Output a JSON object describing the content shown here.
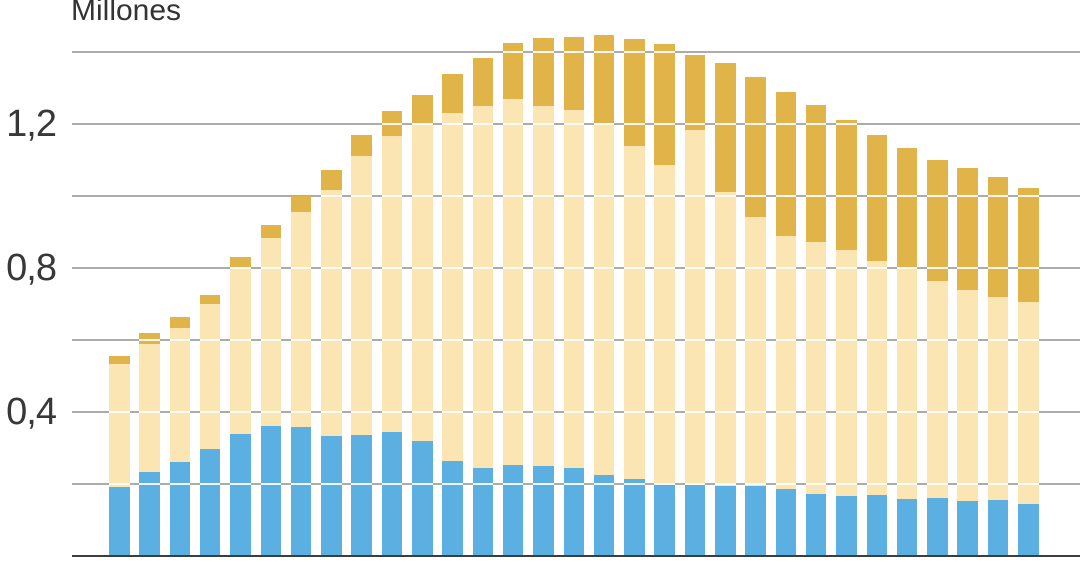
{
  "title": "Millones",
  "colors": {
    "blue_segment": "#5BAFE1",
    "cream_segment": "#FBE6B3",
    "gold_segment": "#E1B44A",
    "gridline": "#ABABAB",
    "baseline": "#3D3D3D",
    "bar_gridline_overlay": "#FFFFFF",
    "text": "#333333",
    "background": "#FFFFFF"
  },
  "chart_data": {
    "type": "bar",
    "stacked": true,
    "title": "Millones",
    "unit_label": "Millones",
    "xlabel": "",
    "ylabel": "Millones",
    "x_tick_labels_visible": false,
    "bar_count": 31,
    "ylim": [
      0,
      1.45
    ],
    "grid": true,
    "gridline_values": [
      0.2,
      0.4,
      0.6,
      0.8,
      1.0,
      1.2,
      1.4
    ],
    "y_axis_ticks": [
      {
        "value": 1.2,
        "label": "1,2"
      },
      {
        "value": 0.8,
        "label": "0,8"
      },
      {
        "value": 0.4,
        "label": "0,4"
      }
    ],
    "legend_visible": false,
    "series": [
      {
        "name": "blue-bottom-segment",
        "color_key": "blue_segment",
        "values": [
          0.192,
          0.233,
          0.261,
          0.297,
          0.339,
          0.361,
          0.358,
          0.333,
          0.336,
          0.344,
          0.319,
          0.265,
          0.244,
          0.254,
          0.251,
          0.244,
          0.225,
          0.213,
          0.2,
          0.197,
          0.193,
          0.193,
          0.186,
          0.172,
          0.168,
          0.169,
          0.158,
          0.16,
          0.153,
          0.156,
          0.144
        ]
      },
      {
        "name": "cream-middle-segment",
        "color_key": "cream_segment",
        "values": [
          0.341,
          0.357,
          0.371,
          0.403,
          0.461,
          0.522,
          0.597,
          0.684,
          0.774,
          0.823,
          0.881,
          0.965,
          1.006,
          1.016,
          0.999,
          0.994,
          0.977,
          0.927,
          0.885,
          0.986,
          0.817,
          0.749,
          0.704,
          0.7,
          0.682,
          0.651,
          0.641,
          0.603,
          0.586,
          0.562,
          0.562
        ]
      },
      {
        "name": "gold-top-segment",
        "color_key": "gold_segment",
        "values": [
          0.022,
          0.029,
          0.031,
          0.025,
          0.03,
          0.037,
          0.045,
          0.055,
          0.06,
          0.069,
          0.08,
          0.11,
          0.134,
          0.154,
          0.19,
          0.203,
          0.246,
          0.296,
          0.337,
          0.209,
          0.36,
          0.388,
          0.4,
          0.381,
          0.361,
          0.349,
          0.335,
          0.337,
          0.339,
          0.335,
          0.316
        ]
      }
    ],
    "totals": [
      0.555,
      0.619,
      0.663,
      0.725,
      0.83,
      0.92,
      1.0,
      1.072,
      1.17,
      1.236,
      1.28,
      1.34,
      1.384,
      1.424,
      1.44,
      1.441,
      1.448,
      1.436,
      1.422,
      1.392,
      1.37,
      1.33,
      1.29,
      1.253,
      1.211,
      1.169,
      1.134,
      1.1,
      1.078,
      1.053,
      1.022
    ]
  }
}
